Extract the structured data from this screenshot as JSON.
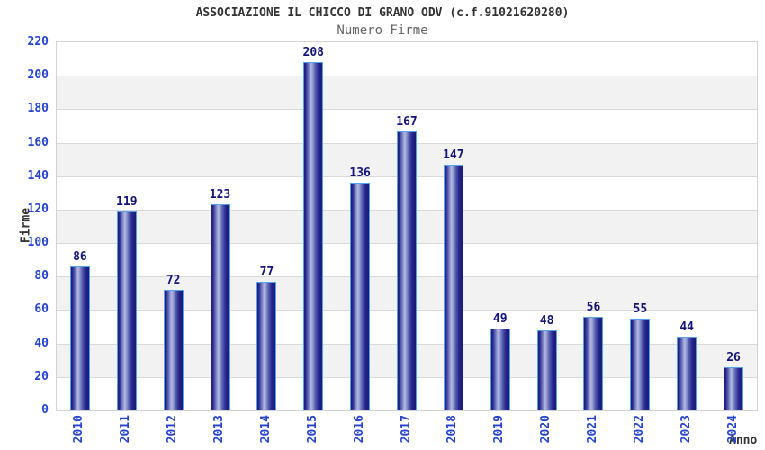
{
  "title": "ASSOCIAZIONE IL CHICCO DI GRANO ODV (c.f.91021620280)",
  "subtitle": "Numero Firme",
  "chart_data": {
    "type": "bar",
    "title": "ASSOCIAZIONE IL CHICCO DI GRANO ODV (c.f.91021620280)",
    "subtitle": "Numero Firme",
    "categories": [
      "2010",
      "2011",
      "2012",
      "2013",
      "2014",
      "2015",
      "2016",
      "2017",
      "2018",
      "2019",
      "2020",
      "2021",
      "2022",
      "2023",
      "2024"
    ],
    "values": [
      86,
      119,
      72,
      123,
      77,
      208,
      136,
      167,
      147,
      49,
      48,
      56,
      55,
      44,
      26
    ],
    "xlabel": "Anno",
    "ylabel": "Firme",
    "ylim": [
      0,
      220
    ],
    "ytick_step": 20,
    "yticks": [
      0,
      20,
      40,
      60,
      80,
      100,
      120,
      140,
      160,
      180,
      200,
      220
    ],
    "grid": true,
    "legend": false,
    "value_labels": true
  },
  "colors": {
    "bar_dark": "#191975",
    "bar_highlight": "#b2bae2",
    "bar_border": "#55a2e8",
    "tick_label": "#2543cd",
    "value_label": "#13137c",
    "axis_title": "#333333",
    "title": "#333333",
    "subtitle": "#666666",
    "band_white": "#ffffff",
    "band_gray": "#f2f2f2",
    "gridline": "#d9d9d9",
    "plot_border": "#d3d3d3"
  }
}
